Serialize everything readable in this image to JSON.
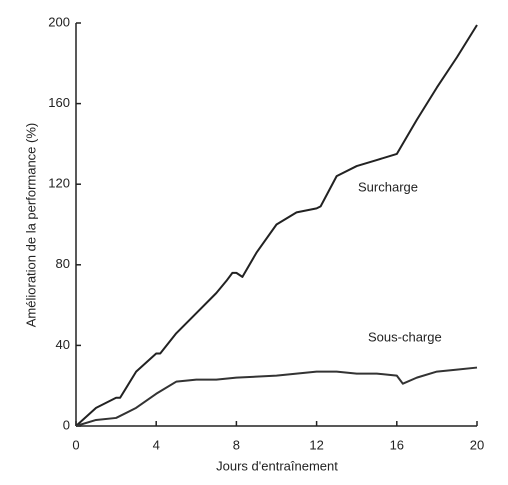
{
  "chart_data": {
    "type": "line",
    "xlabel": "Jours d'entraînement",
    "ylabel": "Amélioration de la performance (%)",
    "xlim": [
      0,
      20
    ],
    "xticks": [
      0,
      4,
      8,
      12,
      16,
      20
    ],
    "ylim": [
      0,
      200
    ],
    "yticks": [
      0,
      40,
      80,
      120,
      160,
      200
    ],
    "series": [
      {
        "name": "Surcharge",
        "color": "#222222",
        "x": [
          0,
          1,
          2,
          2.2,
          3,
          4,
          4.2,
          5,
          6,
          7,
          7.5,
          7.8,
          8,
          8.3,
          9,
          10,
          11,
          12,
          12.2,
          13,
          14,
          15,
          16,
          17,
          18,
          19,
          20
        ],
        "values": [
          0,
          9,
          14,
          14,
          27,
          36,
          36,
          46,
          56,
          66,
          72,
          76,
          76,
          74,
          86,
          100,
          106,
          108,
          109,
          124,
          129,
          132,
          135,
          152,
          168,
          183,
          199
        ]
      },
      {
        "name": "Sous-charge",
        "color": "#333333",
        "x": [
          0,
          1,
          2,
          3,
          4,
          5,
          6,
          7,
          8,
          10,
          11,
          12,
          13,
          14,
          15,
          16,
          16.3,
          17,
          18,
          19,
          20
        ],
        "values": [
          0,
          3,
          4,
          9,
          16,
          22,
          23,
          23,
          24,
          25,
          26,
          27,
          27,
          26,
          26,
          25,
          21,
          24,
          27,
          28,
          29
        ]
      }
    ]
  }
}
